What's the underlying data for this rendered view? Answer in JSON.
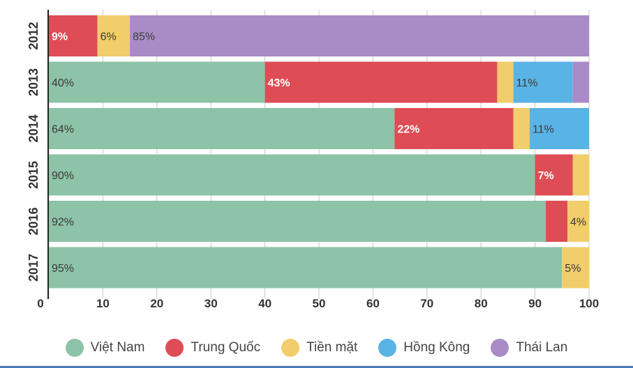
{
  "chart_data": {
    "type": "bar",
    "orientation": "horizontal",
    "stacked": true,
    "categories": [
      "2012",
      "2013",
      "2014",
      "2015",
      "2016",
      "2017"
    ],
    "series": [
      {
        "name": "Việt Nam",
        "color": "#8dc3a7",
        "values": [
          0,
          40,
          64,
          90,
          92,
          95
        ],
        "labels": [
          "",
          "40%",
          "64%",
          "90%",
          "92%",
          "95%"
        ]
      },
      {
        "name": "Trung Quốc",
        "color": "#de4d55",
        "values": [
          9,
          43,
          22,
          7,
          4,
          0
        ],
        "labels": [
          "9%",
          "43%",
          "22%",
          "7%",
          "",
          ""
        ]
      },
      {
        "name": "Tiền mặt",
        "color": "#f2cd6b",
        "values": [
          6,
          3,
          3,
          3,
          4,
          5
        ],
        "labels": [
          "6%",
          "",
          "",
          "",
          "4%",
          "5%"
        ]
      },
      {
        "name": "Hồng Kông",
        "color": "#5ab3e5",
        "values": [
          0,
          11,
          11,
          0,
          0,
          0
        ],
        "labels": [
          "",
          "11%",
          "11%",
          "",
          "",
          ""
        ]
      },
      {
        "name": "Thái Lan",
        "color": "#a98cc7",
        "values": [
          85,
          3,
          0,
          0,
          0,
          0
        ],
        "labels": [
          "85%",
          "",
          "",
          "",
          "",
          ""
        ]
      }
    ],
    "xlim": [
      0,
      100
    ],
    "xticks": [
      "0",
      "10",
      "20",
      "30",
      "40",
      "50",
      "60",
      "70",
      "80",
      "90",
      "100"
    ],
    "grid": true,
    "legend_position": "bottom"
  }
}
